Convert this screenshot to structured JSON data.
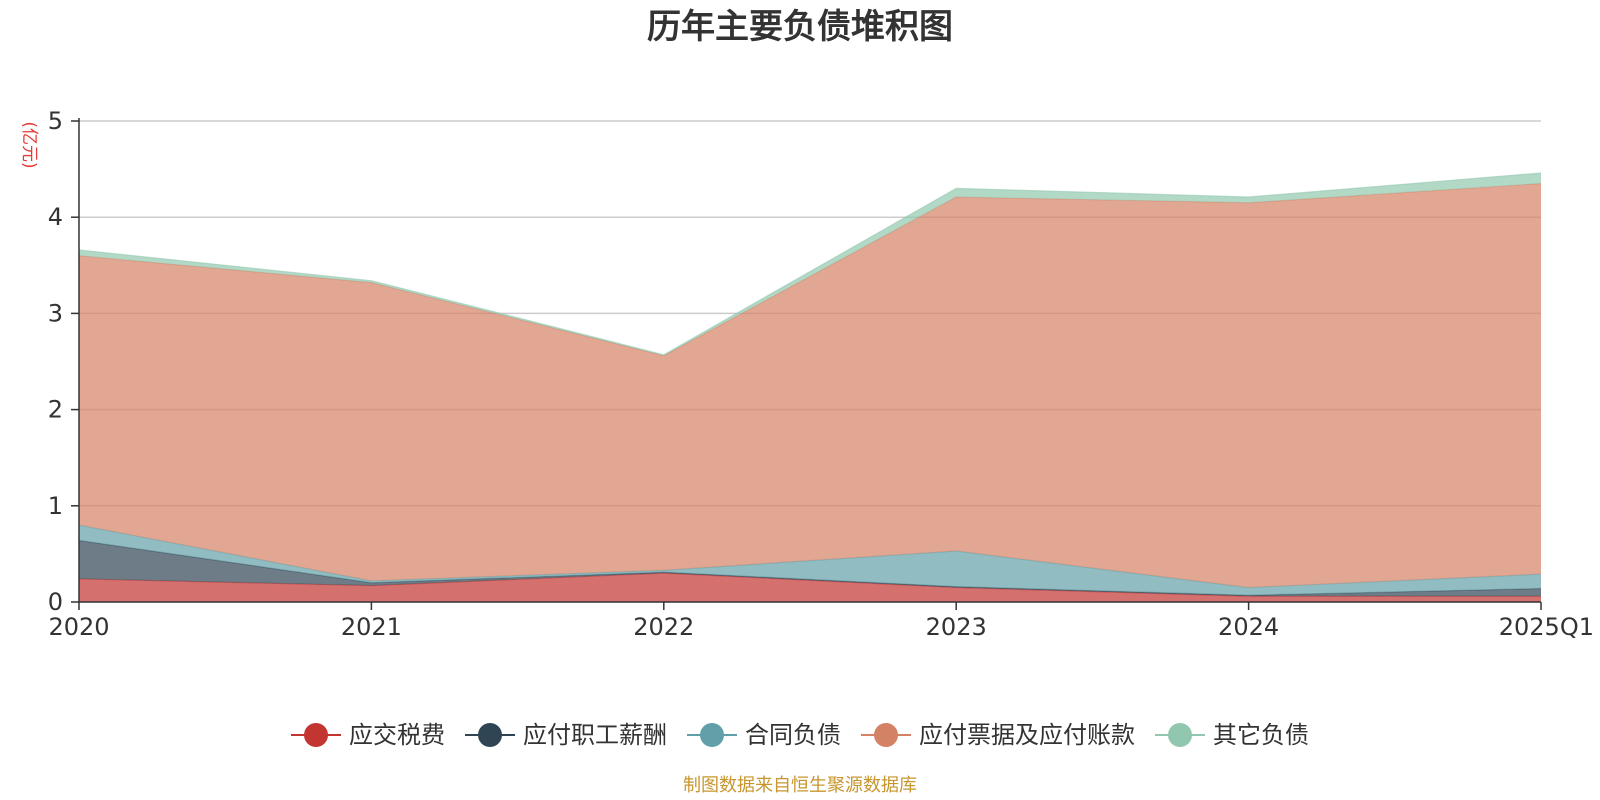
{
  "chart_data": {
    "type": "area",
    "stacked": true,
    "title": "历年主要负债堆积图",
    "ylabel": "(亿元)",
    "xlabel": "",
    "categories": [
      "2020",
      "2021",
      "2022",
      "2023",
      "2024",
      "2025Q1"
    ],
    "ylim": [
      0,
      5
    ],
    "yticks": [
      0,
      1,
      2,
      3,
      4,
      5
    ],
    "grid": true,
    "legend_position": "bottom",
    "series": [
      {
        "name": "应交税费",
        "color": "#c23531",
        "values": [
          0.24,
          0.17,
          0.3,
          0.15,
          0.06,
          0.06
        ]
      },
      {
        "name": "应付职工薪酬",
        "color": "#2f4554",
        "values": [
          0.4,
          0.03,
          0.01,
          0.01,
          0.01,
          0.08
        ]
      },
      {
        "name": "合同负债",
        "color": "#61a0a8",
        "values": [
          0.16,
          0.02,
          0.02,
          0.37,
          0.08,
          0.15
        ]
      },
      {
        "name": "应付票据及应付账款",
        "color": "#d48265",
        "values": [
          2.8,
          3.1,
          2.23,
          3.68,
          4.0,
          4.06
        ]
      },
      {
        "name": "其它负债",
        "color": "#91c7ae",
        "values": [
          0.06,
          0.02,
          0.01,
          0.09,
          0.06,
          0.11
        ]
      }
    ],
    "source_note": "制图数据来自恒生聚源数据库"
  }
}
